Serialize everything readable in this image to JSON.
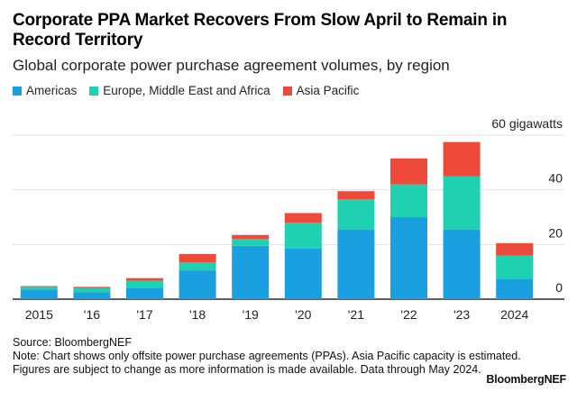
{
  "header": {
    "title": "Corporate PPA Market Recovers From Slow April to Remain in Record Territory",
    "subtitle": "Global corporate power purchase agreement volumes, by region"
  },
  "footer": {
    "source": "Source: BloombergNEF",
    "note": "Note: Chart shows only offsite power purchase agreements (PPAs). Asia Pacific capacity is estimated. Figures are subject to change as more information is made available. Data through May 2024.",
    "brand": "BloombergNEF"
  },
  "chart_data": {
    "type": "bar",
    "stacked": true,
    "title": "Corporate PPA Market Recovers From Slow April to Remain in Record Territory",
    "subtitle": "Global corporate power purchase agreement volumes, by region",
    "ylabel": "gigawatts",
    "y_top_label": "60 gigawatts",
    "ylim": [
      0,
      60
    ],
    "yticks": [
      0,
      20,
      40,
      60
    ],
    "ytick_labels": [
      "0",
      "20",
      "40",
      "60 gigawatts"
    ],
    "legend_position": "top-left",
    "categories": [
      "2015",
      "'16",
      "'17",
      "'18",
      "'19",
      "'20",
      "'21",
      "'22",
      "'23",
      "2024"
    ],
    "series": [
      {
        "name": "Americas",
        "color": "#1a9fe0",
        "values": [
          3.5,
          2.5,
          4.2,
          10.5,
          19.5,
          18.5,
          25.5,
          30.0,
          25.5,
          7.5
        ]
      },
      {
        "name": "Europe, Middle East and Africa",
        "color": "#1fd1b0",
        "values": [
          1.0,
          1.5,
          2.5,
          3.0,
          2.5,
          9.5,
          11.0,
          12.0,
          19.5,
          8.5
        ]
      },
      {
        "name": "Asia Pacific",
        "color": "#ee4a3c",
        "values": [
          0.3,
          0.5,
          1.0,
          3.0,
          1.5,
          3.5,
          3.0,
          9.5,
          12.5,
          4.5
        ]
      }
    ]
  }
}
